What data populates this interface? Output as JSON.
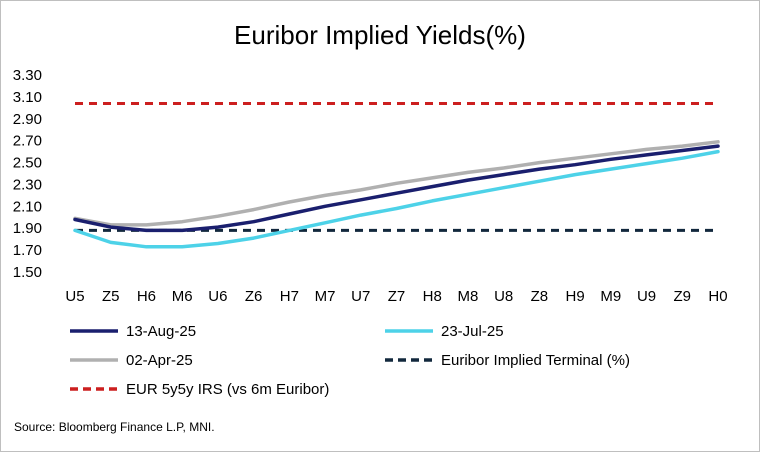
{
  "chart_data": {
    "type": "line",
    "title": "Euribor Implied Yields(%)",
    "xlabel": "",
    "ylabel": "",
    "categories": [
      "U5",
      "Z5",
      "H6",
      "M6",
      "U6",
      "Z6",
      "H7",
      "M7",
      "U7",
      "Z7",
      "H8",
      "M8",
      "U8",
      "Z8",
      "H9",
      "M9",
      "U9",
      "Z9",
      "H0"
    ],
    "ylim": [
      1.5,
      3.3
    ],
    "yticks": [
      "1.50",
      "1.70",
      "1.90",
      "2.10",
      "2.30",
      "2.50",
      "2.70",
      "2.90",
      "3.10",
      "3.30"
    ],
    "grid": false,
    "legend_position": "bottom",
    "series": [
      {
        "name": "13-Aug-25",
        "color": "#1a1f6e",
        "style": "solid",
        "values": [
          1.98,
          1.91,
          1.88,
          1.88,
          1.91,
          1.96,
          2.03,
          2.1,
          2.16,
          2.22,
          2.28,
          2.34,
          2.39,
          2.44,
          2.48,
          2.53,
          2.57,
          2.61,
          2.65
        ]
      },
      {
        "name": "23-Jul-25",
        "color": "#4dd2e8",
        "style": "solid",
        "values": [
          1.88,
          1.77,
          1.73,
          1.73,
          1.76,
          1.81,
          1.88,
          1.95,
          2.02,
          2.08,
          2.15,
          2.21,
          2.27,
          2.33,
          2.39,
          2.44,
          2.49,
          2.54,
          2.6
        ]
      },
      {
        "name": "02-Apr-25",
        "color": "#b0b0b0",
        "style": "solid",
        "values": [
          1.99,
          1.93,
          1.93,
          1.96,
          2.01,
          2.07,
          2.14,
          2.2,
          2.25,
          2.31,
          2.36,
          2.41,
          2.45,
          2.5,
          2.54,
          2.58,
          2.62,
          2.65,
          2.69
        ]
      },
      {
        "name": "Euribor Implied Terminal (%)",
        "color": "#12283d",
        "style": "dashed",
        "values": [
          1.88,
          1.88,
          1.88,
          1.88,
          1.88,
          1.88,
          1.88,
          1.88,
          1.88,
          1.88,
          1.88,
          1.88,
          1.88,
          1.88,
          1.88,
          1.88,
          1.88,
          1.88,
          1.88
        ]
      },
      {
        "name": "EUR 5y5y IRS (vs 6m Euribor)",
        "color": "#cc1f1f",
        "style": "dashed",
        "values": [
          3.04,
          3.04,
          3.04,
          3.04,
          3.04,
          3.04,
          3.04,
          3.04,
          3.04,
          3.04,
          3.04,
          3.04,
          3.04,
          3.04,
          3.04,
          3.04,
          3.04,
          3.04,
          3.04
        ]
      }
    ],
    "source": "Source: Bloomberg Finance L.P, MNI."
  }
}
